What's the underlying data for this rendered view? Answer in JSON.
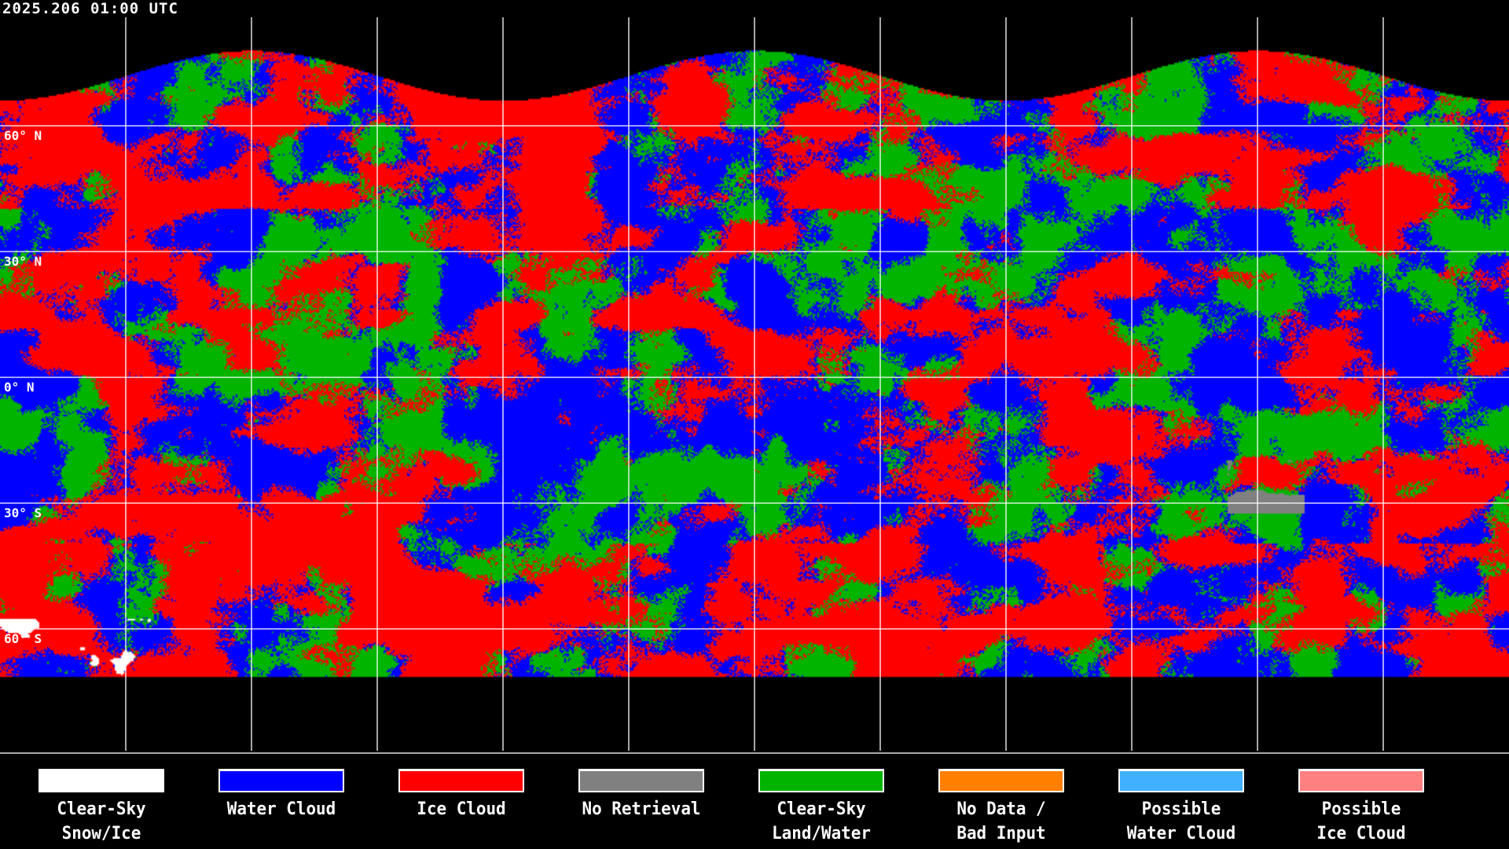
{
  "title": "2025.206 01:00 UTC",
  "latitude_labels": [
    "60° N",
    "30° N",
    "0° N",
    "30° S",
    "60° S"
  ],
  "legend": [
    {
      "line1": "Clear-Sky",
      "line2": "Snow/Ice",
      "color": "#ffffff"
    },
    {
      "line1": "Water Cloud",
      "line2": "",
      "color": "#0000ff"
    },
    {
      "line1": "Ice Cloud",
      "line2": "",
      "color": "#ff0000"
    },
    {
      "line1": "No Retrieval",
      "line2": "",
      "color": "#808080"
    },
    {
      "line1": "Clear-Sky",
      "line2": "Land/Water",
      "color": "#00b400"
    },
    {
      "line1": "No Data /",
      "line2": "Bad Input",
      "color": "#ff8000"
    },
    {
      "line1": "Possible",
      "line2": "Water Cloud",
      "color": "#40b0ff"
    },
    {
      "line1": "Possible",
      "line2": "Ice Cloud",
      "color": "#ff8080"
    }
  ]
}
